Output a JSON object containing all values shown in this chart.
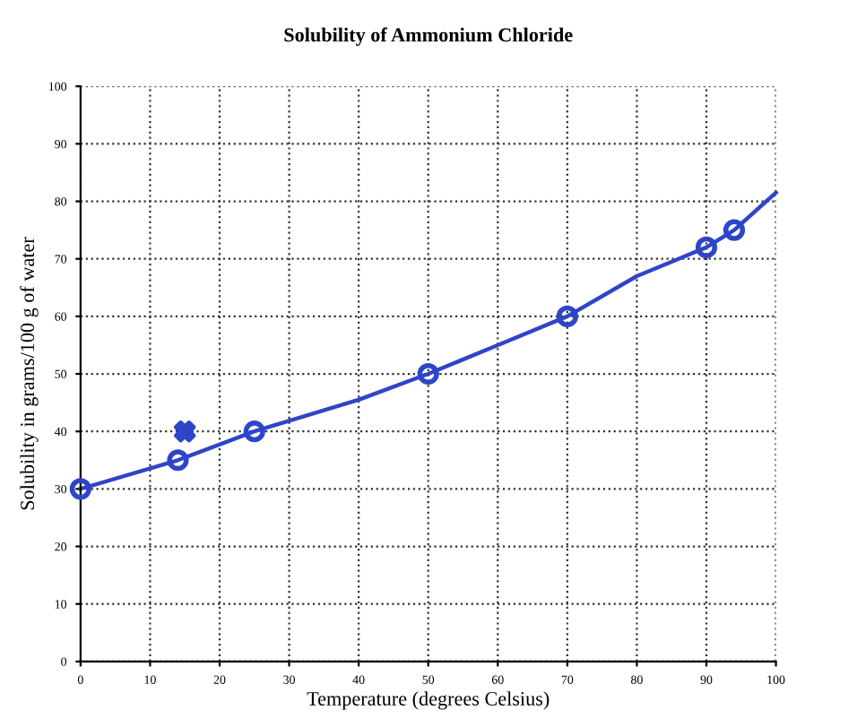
{
  "chart_data": {
    "type": "line",
    "title": "Solubility of Ammonium Chloride",
    "xlabel": "Temperature (degrees Celsius)",
    "ylabel": "Solubility in grams/100 g of water",
    "xlim": [
      0,
      100
    ],
    "ylim": [
      0,
      100
    ],
    "xticks": [
      0,
      10,
      20,
      30,
      40,
      50,
      60,
      70,
      80,
      90,
      100
    ],
    "yticks": [
      0,
      10,
      20,
      30,
      40,
      50,
      60,
      70,
      80,
      90,
      100
    ],
    "grid": true,
    "series": [
      {
        "color": "#2f45c8",
        "marker": "none",
        "x": [
          0,
          14,
          25,
          40,
          50,
          60,
          70,
          80,
          90,
          94,
          100
        ],
        "values": [
          30,
          35,
          40,
          45.5,
          50,
          55,
          60,
          67,
          72,
          75,
          81.5
        ]
      },
      {
        "type": "scatter",
        "color": "#2f45c8",
        "marker": "circle",
        "x": [
          0,
          14,
          25,
          50,
          70,
          90,
          94
        ],
        "values": [
          30,
          35,
          40,
          50,
          60,
          72,
          75
        ]
      },
      {
        "type": "scatter",
        "color": "#2f45c8",
        "marker": "cross",
        "x": [
          15
        ],
        "values": [
          40
        ]
      }
    ]
  }
}
